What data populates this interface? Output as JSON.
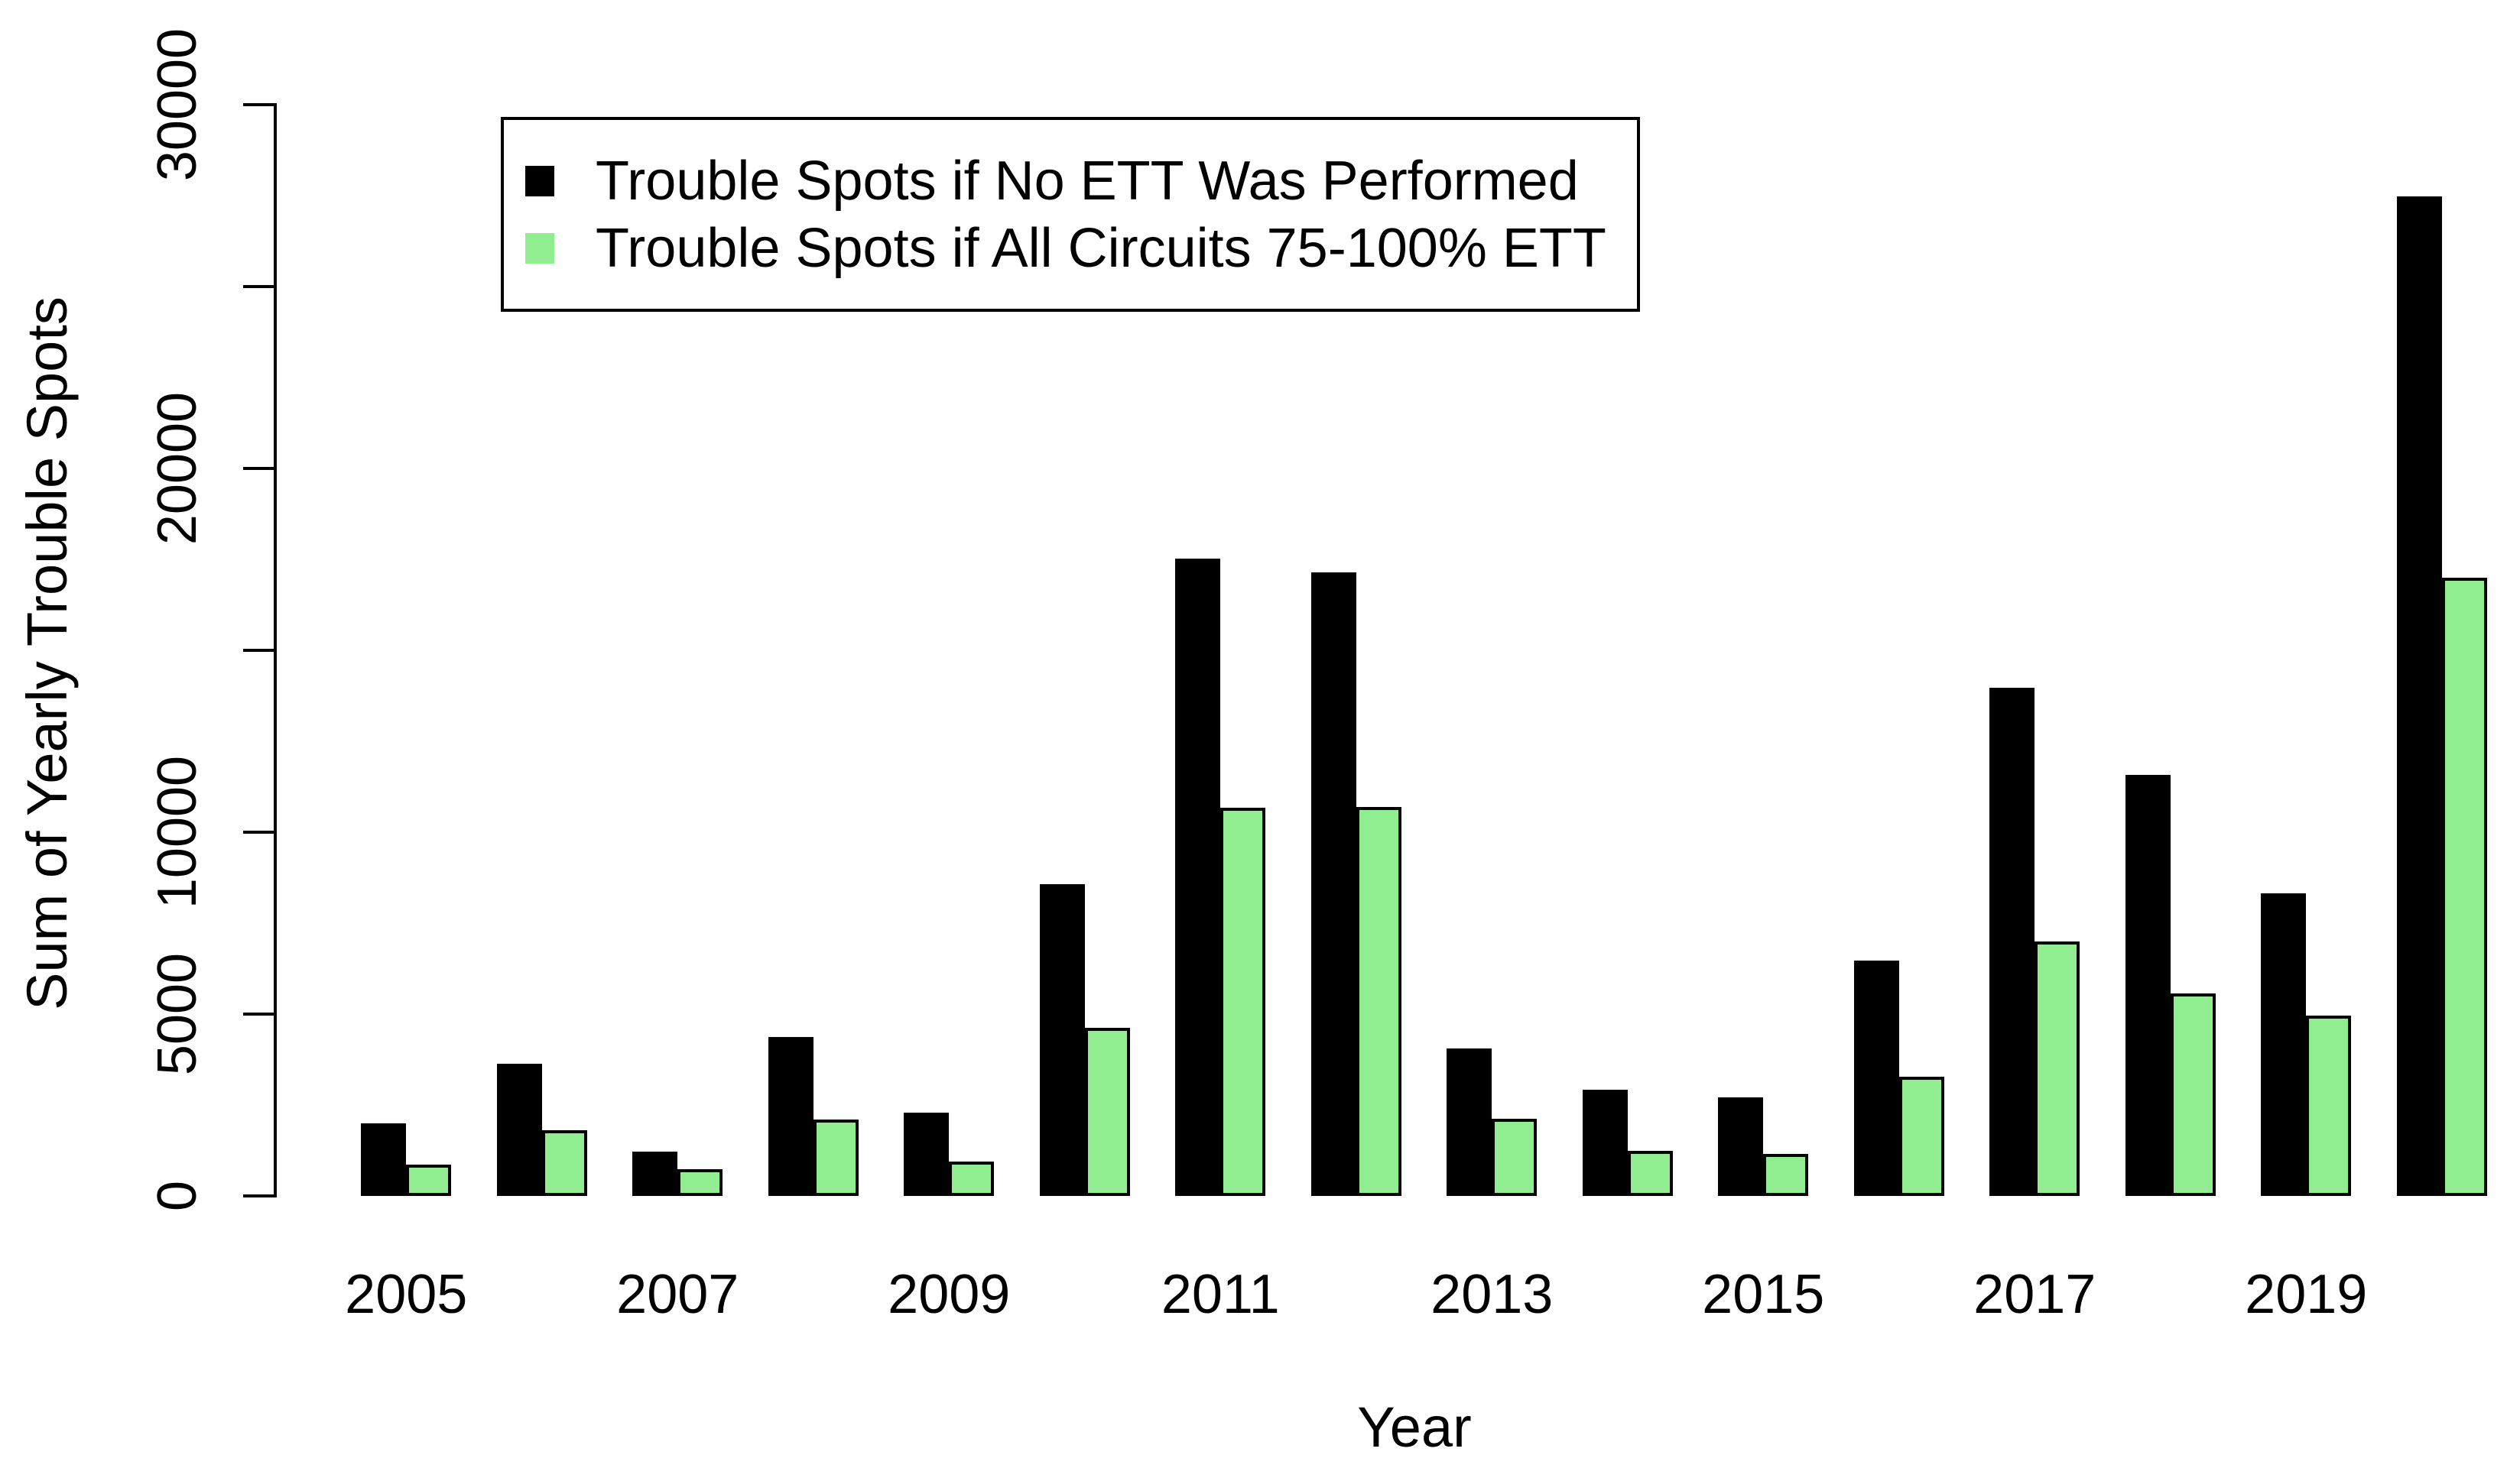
{
  "chart_data": {
    "type": "bar",
    "title": "",
    "xlabel": "Year",
    "ylabel": "Sum of Yearly Trouble Spots",
    "ylim": [
      0,
      30000
    ],
    "grid": false,
    "legend_position": "top-left",
    "y_ticks": [
      0,
      5000,
      10000,
      15000,
      20000,
      25000,
      30000
    ],
    "y_tick_labeled": [
      0,
      5000,
      10000,
      20000,
      30000
    ],
    "x_tick_labels": [
      "2005",
      "2007",
      "2009",
      "2011",
      "2013",
      "2015",
      "2017",
      "2019"
    ],
    "categories": [
      "2005",
      "2006",
      "2007",
      "2008",
      "2009",
      "2010",
      "2011",
      "2012",
      "2013",
      "2014",
      "2015",
      "2016",
      "2017",
      "2018",
      "2019",
      "2020"
    ],
    "series": [
      {
        "name": "Trouble Spots if No ETT Was Performed",
        "key": "no-ett",
        "color": "#000000",
        "values": [
          2000,
          3630,
          1210,
          4370,
          2300,
          8570,
          17530,
          17150,
          4050,
          2930,
          2720,
          6480,
          13980,
          11570,
          8320,
          27480
        ]
      },
      {
        "name": "Trouble Spots if All Circuits 75-100% ETT",
        "key": "ett-75-100",
        "color": "#90EE90",
        "values": [
          870,
          1810,
          740,
          2110,
          950,
          4630,
          10670,
          10700,
          2130,
          1240,
          1150,
          3280,
          7000,
          5560,
          4960,
          17000
        ]
      }
    ]
  }
}
